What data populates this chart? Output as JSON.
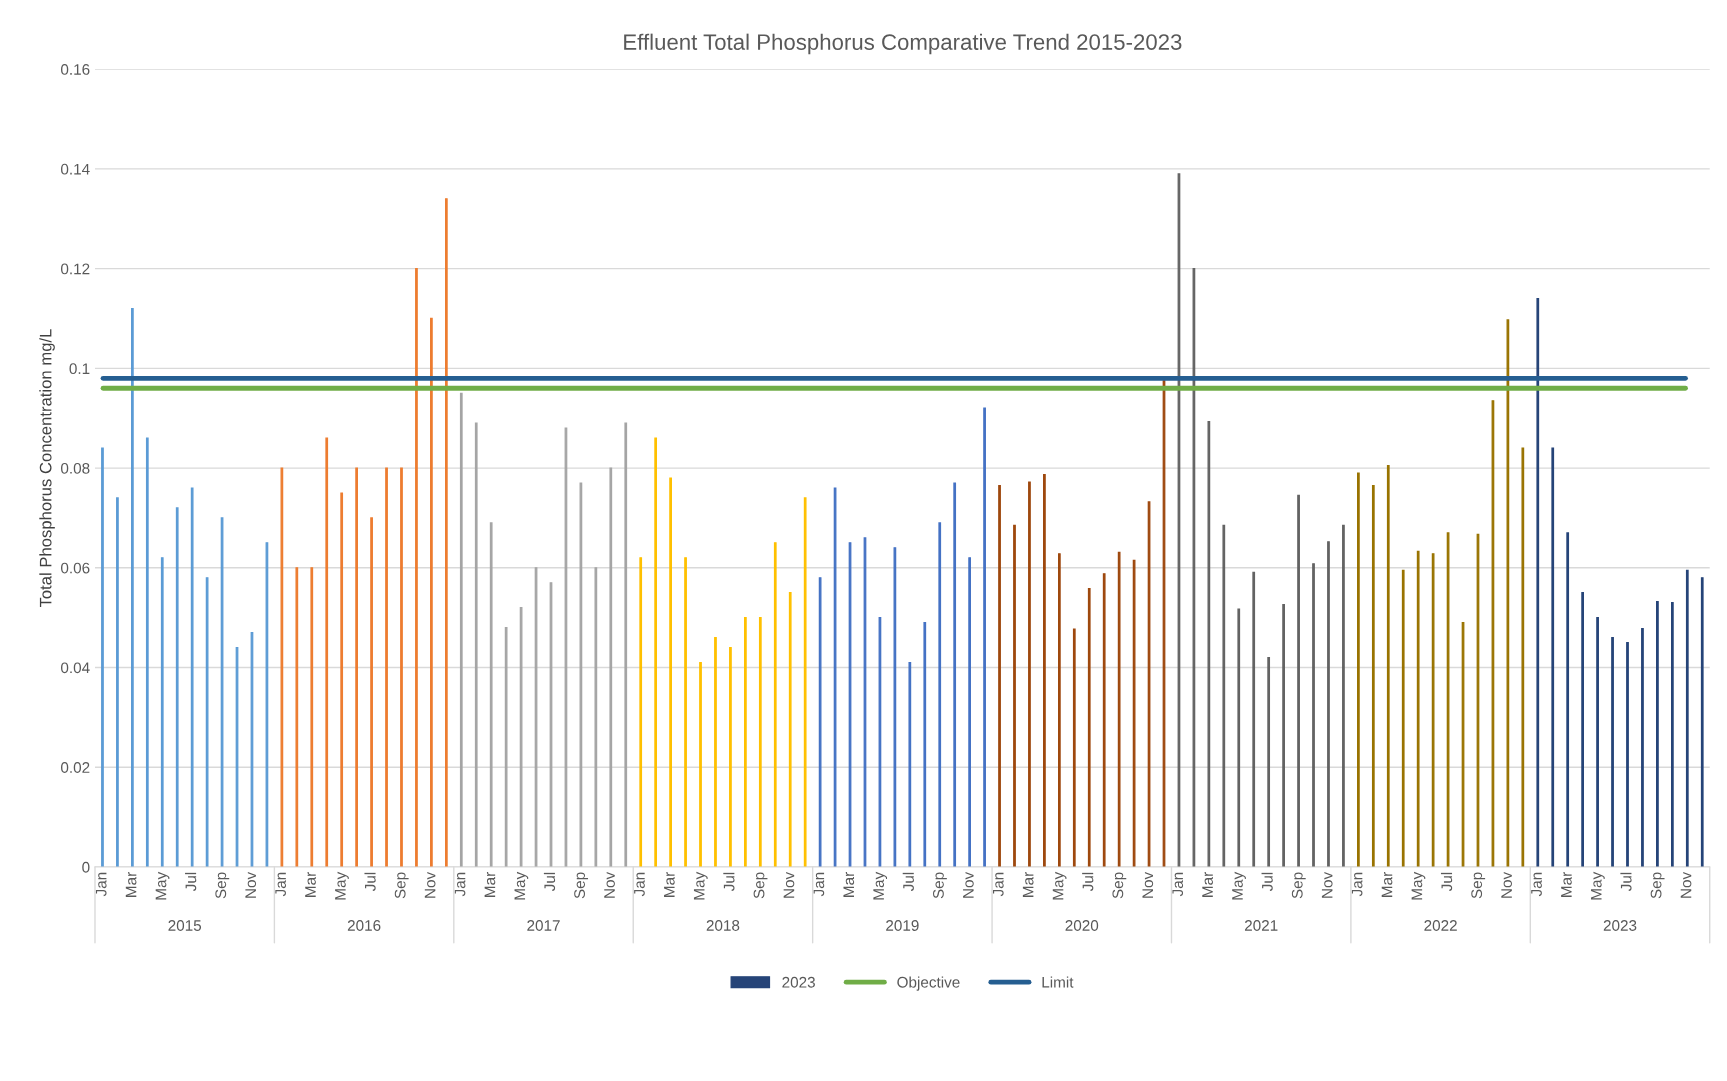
{
  "chart_data": {
    "type": "bar",
    "title": "Effluent Total Phosphorus Comparative Trend 2015-2023",
    "ylabel": "Total Phosphorus Concentration mg/L",
    "categories": [
      "Jan",
      null,
      "Mar",
      null,
      "May",
      null,
      "Jul",
      null,
      "Sep",
      null,
      "Nov",
      null,
      "Jan",
      null,
      "Mar",
      null,
      "May",
      null,
      "Jul",
      null,
      "Sep",
      null,
      "Nov",
      null,
      "Jan",
      null,
      "Mar",
      null,
      "May",
      null,
      "Jul",
      null,
      "Sep",
      null,
      "Nov",
      null,
      "Jan",
      null,
      "Mar",
      null,
      "May",
      null,
      "Jul",
      null,
      "Sep",
      null,
      "Nov",
      null,
      "Jan",
      null,
      "Mar",
      null,
      "May",
      null,
      "Jul",
      null,
      "Sep",
      null,
      "Nov",
      null,
      "Jan",
      null,
      "Mar",
      null,
      "May",
      null,
      "Jul",
      null,
      "Sep",
      null,
      "Nov",
      null,
      "Jan",
      null,
      "Mar",
      null,
      "May",
      null,
      "Jul",
      null,
      "Sep",
      null,
      "Nov",
      null,
      "Jan",
      null,
      "Mar",
      null,
      "May",
      null,
      "Jul",
      null,
      "Sep",
      null,
      "Nov",
      null,
      "Jan",
      null,
      "Mar",
      null,
      "May",
      null,
      "Jul",
      null,
      "Sep",
      null,
      "Nov",
      null
    ],
    "series": [
      {
        "color": "#5b9bd5",
        "values": [
          0.084,
          0.074,
          0.112,
          0.086,
          0.062,
          0.072,
          0.076,
          0.058,
          0.07,
          0.044,
          0.047,
          0.065,
          null,
          null,
          null,
          null,
          null,
          null,
          null,
          null,
          null,
          null,
          null,
          null,
          null,
          null,
          null,
          null,
          null,
          null,
          null,
          null,
          null,
          null,
          null,
          null,
          null,
          null,
          null,
          null,
          null,
          null,
          null,
          null,
          null,
          null,
          null,
          null,
          null,
          null,
          null,
          null,
          null,
          null,
          null,
          null,
          null,
          null,
          null,
          null,
          null,
          null,
          null,
          null,
          null,
          null,
          null,
          null,
          null,
          null,
          null,
          null,
          null,
          null,
          null,
          null,
          null,
          null,
          null,
          null,
          null,
          null,
          null,
          null,
          null,
          null,
          null,
          null,
          null,
          null,
          null,
          null,
          null,
          null,
          null,
          null,
          null,
          null,
          null,
          null,
          null,
          null,
          null,
          null,
          null,
          null,
          null,
          null
        ]
      },
      {
        "color": "#ed7d31",
        "values": [
          null,
          null,
          null,
          null,
          null,
          null,
          null,
          null,
          null,
          null,
          null,
          null,
          0.08,
          0.06,
          0.06,
          0.086,
          0.075,
          0.08,
          0.07,
          0.08,
          0.08,
          0.12,
          0.11,
          0.134,
          null,
          null,
          null,
          null,
          null,
          null,
          null,
          null,
          null,
          null,
          null,
          null,
          null,
          null,
          null,
          null,
          null,
          null,
          null,
          null,
          null,
          null,
          null,
          null,
          null,
          null,
          null,
          null,
          null,
          null,
          null,
          null,
          null,
          null,
          null,
          null,
          null,
          null,
          null,
          null,
          null,
          null,
          null,
          null,
          null,
          null,
          null,
          null,
          null,
          null,
          null,
          null,
          null,
          null,
          null,
          null,
          null,
          null,
          null,
          null,
          null,
          null,
          null,
          null,
          null,
          null,
          null,
          null,
          null,
          null,
          null,
          null,
          null,
          null,
          null,
          null,
          null,
          null,
          null,
          null,
          null,
          null,
          null,
          null
        ]
      },
      {
        "color": "#a5a5a5",
        "values": [
          null,
          null,
          null,
          null,
          null,
          null,
          null,
          null,
          null,
          null,
          null,
          null,
          null,
          null,
          null,
          null,
          null,
          null,
          null,
          null,
          null,
          null,
          null,
          null,
          0.095,
          0.089,
          0.069,
          0.048,
          0.052,
          0.06,
          0.057,
          0.088,
          0.077,
          0.06,
          0.08,
          0.089,
          null,
          null,
          null,
          null,
          null,
          null,
          null,
          null,
          null,
          null,
          null,
          null,
          null,
          null,
          null,
          null,
          null,
          null,
          null,
          null,
          null,
          null,
          null,
          null,
          null,
          null,
          null,
          null,
          null,
          null,
          null,
          null,
          null,
          null,
          null,
          null,
          null,
          null,
          null,
          null,
          null,
          null,
          null,
          null,
          null,
          null,
          null,
          null,
          null,
          null,
          null,
          null,
          null,
          null,
          null,
          null,
          null,
          null,
          null,
          null,
          null,
          null,
          null,
          null,
          null,
          null,
          null,
          null,
          null,
          null,
          null,
          null
        ]
      },
      {
        "color": "#ffc000",
        "values": [
          null,
          null,
          null,
          null,
          null,
          null,
          null,
          null,
          null,
          null,
          null,
          null,
          null,
          null,
          null,
          null,
          null,
          null,
          null,
          null,
          null,
          null,
          null,
          null,
          null,
          null,
          null,
          null,
          null,
          null,
          null,
          null,
          null,
          null,
          null,
          null,
          0.062,
          0.086,
          0.078,
          0.062,
          0.041,
          0.046,
          0.044,
          0.05,
          0.05,
          0.065,
          0.055,
          0.074,
          null,
          null,
          null,
          null,
          null,
          null,
          null,
          null,
          null,
          null,
          null,
          null,
          null,
          null,
          null,
          null,
          null,
          null,
          null,
          null,
          null,
          null,
          null,
          null,
          null,
          null,
          null,
          null,
          null,
          null,
          null,
          null,
          null,
          null,
          null,
          null,
          null,
          null,
          null,
          null,
          null,
          null,
          null,
          null,
          null,
          null,
          null,
          null,
          null,
          null,
          null,
          null,
          null,
          null,
          null,
          null,
          null,
          null,
          null,
          null
        ]
      },
      {
        "color": "#4472c4",
        "values": [
          null,
          null,
          null,
          null,
          null,
          null,
          null,
          null,
          null,
          null,
          null,
          null,
          null,
          null,
          null,
          null,
          null,
          null,
          null,
          null,
          null,
          null,
          null,
          null,
          null,
          null,
          null,
          null,
          null,
          null,
          null,
          null,
          null,
          null,
          null,
          null,
          null,
          null,
          null,
          null,
          null,
          null,
          null,
          null,
          null,
          null,
          null,
          null,
          0.058,
          0.076,
          0.065,
          0.066,
          0.05,
          0.064,
          0.041,
          0.049,
          0.069,
          0.077,
          0.062,
          0.092,
          null,
          null,
          null,
          null,
          null,
          null,
          null,
          null,
          null,
          null,
          null,
          null,
          null,
          null,
          null,
          null,
          null,
          null,
          null,
          null,
          null,
          null,
          null,
          null,
          null,
          null,
          null,
          null,
          null,
          null,
          null,
          null,
          null,
          null,
          null,
          null,
          null,
          null,
          null,
          null,
          null,
          null,
          null,
          null,
          null,
          null,
          null,
          null
        ]
      },
      {
        "color": "#9e480e",
        "values": [
          null,
          null,
          null,
          null,
          null,
          null,
          null,
          null,
          null,
          null,
          null,
          null,
          null,
          null,
          null,
          null,
          null,
          null,
          null,
          null,
          null,
          null,
          null,
          null,
          null,
          null,
          null,
          null,
          null,
          null,
          null,
          null,
          null,
          null,
          null,
          null,
          null,
          null,
          null,
          null,
          null,
          null,
          null,
          null,
          null,
          null,
          null,
          null,
          null,
          null,
          null,
          null,
          null,
          null,
          null,
          null,
          null,
          null,
          null,
          null,
          0.0765,
          0.0685,
          0.0772,
          0.0787,
          0.0628,
          0.0477,
          0.0558,
          0.0588,
          0.0631,
          0.0615,
          0.0732,
          0.0975,
          null,
          null,
          null,
          null,
          null,
          null,
          null,
          null,
          null,
          null,
          null,
          null,
          null,
          null,
          null,
          null,
          null,
          null,
          null,
          null,
          null,
          null,
          null,
          null,
          null,
          null,
          null,
          null,
          null,
          null,
          null,
          null,
          null,
          null,
          null,
          null
        ]
      },
      {
        "color": "#636363",
        "values": [
          null,
          null,
          null,
          null,
          null,
          null,
          null,
          null,
          null,
          null,
          null,
          null,
          null,
          null,
          null,
          null,
          null,
          null,
          null,
          null,
          null,
          null,
          null,
          null,
          null,
          null,
          null,
          null,
          null,
          null,
          null,
          null,
          null,
          null,
          null,
          null,
          null,
          null,
          null,
          null,
          null,
          null,
          null,
          null,
          null,
          null,
          null,
          null,
          null,
          null,
          null,
          null,
          null,
          null,
          null,
          null,
          null,
          null,
          null,
          null,
          null,
          null,
          null,
          null,
          null,
          null,
          null,
          null,
          null,
          null,
          null,
          null,
          0.139,
          0.12,
          0.0893,
          0.0685,
          0.0517,
          0.0591,
          0.042,
          0.0526,
          0.0745,
          0.0608,
          0.0652,
          0.0685,
          null,
          null,
          null,
          null,
          null,
          null,
          null,
          null,
          null,
          null,
          null,
          null,
          null,
          null,
          null,
          null,
          null,
          null,
          null,
          null,
          null,
          null,
          null,
          null
        ]
      },
      {
        "color": "#997300",
        "values": [
          null,
          null,
          null,
          null,
          null,
          null,
          null,
          null,
          null,
          null,
          null,
          null,
          null,
          null,
          null,
          null,
          null,
          null,
          null,
          null,
          null,
          null,
          null,
          null,
          null,
          null,
          null,
          null,
          null,
          null,
          null,
          null,
          null,
          null,
          null,
          null,
          null,
          null,
          null,
          null,
          null,
          null,
          null,
          null,
          null,
          null,
          null,
          null,
          null,
          null,
          null,
          null,
          null,
          null,
          null,
          null,
          null,
          null,
          null,
          null,
          null,
          null,
          null,
          null,
          null,
          null,
          null,
          null,
          null,
          null,
          null,
          null,
          null,
          null,
          null,
          null,
          null,
          null,
          null,
          null,
          null,
          null,
          null,
          null,
          0.079,
          0.0765,
          0.0805,
          0.0595,
          0.0633,
          0.0628,
          0.067,
          0.049,
          0.0667,
          0.0935,
          0.1097,
          0.084,
          null,
          null,
          null,
          null,
          null,
          null,
          null,
          null,
          null,
          null,
          null,
          null
        ]
      },
      {
        "name": "2023",
        "color": "#264478",
        "values": [
          null,
          null,
          null,
          null,
          null,
          null,
          null,
          null,
          null,
          null,
          null,
          null,
          null,
          null,
          null,
          null,
          null,
          null,
          null,
          null,
          null,
          null,
          null,
          null,
          null,
          null,
          null,
          null,
          null,
          null,
          null,
          null,
          null,
          null,
          null,
          null,
          null,
          null,
          null,
          null,
          null,
          null,
          null,
          null,
          null,
          null,
          null,
          null,
          null,
          null,
          null,
          null,
          null,
          null,
          null,
          null,
          null,
          null,
          null,
          null,
          null,
          null,
          null,
          null,
          null,
          null,
          null,
          null,
          null,
          null,
          null,
          null,
          null,
          null,
          null,
          null,
          null,
          null,
          null,
          null,
          null,
          null,
          null,
          null,
          null,
          null,
          null,
          null,
          null,
          null,
          null,
          null,
          null,
          null,
          null,
          null,
          0.114,
          0.084,
          0.067,
          0.055,
          0.05,
          0.046,
          0.045,
          0.0478,
          0.0532,
          0.053,
          0.0595,
          0.058
        ]
      }
    ],
    "ref_lines": [
      {
        "axis": "y",
        "value": 0.096,
        "label": "Objective",
        "color": "#70ad47"
      },
      {
        "axis": "y",
        "value": 0.098,
        "label": "Limit",
        "color": "#255e91"
      }
    ],
    "ylim": [
      0,
      0.16
    ],
    "yticks": [
      0,
      0.02,
      0.04,
      0.06,
      0.08,
      0.1,
      0.12,
      0.14,
      0.16
    ],
    "annotations": [
      "2015",
      "2016",
      "2017",
      "2018",
      "2019",
      "2020",
      "2021",
      "2022",
      "2023"
    ],
    "grid": "y",
    "legend": "bottom"
  }
}
